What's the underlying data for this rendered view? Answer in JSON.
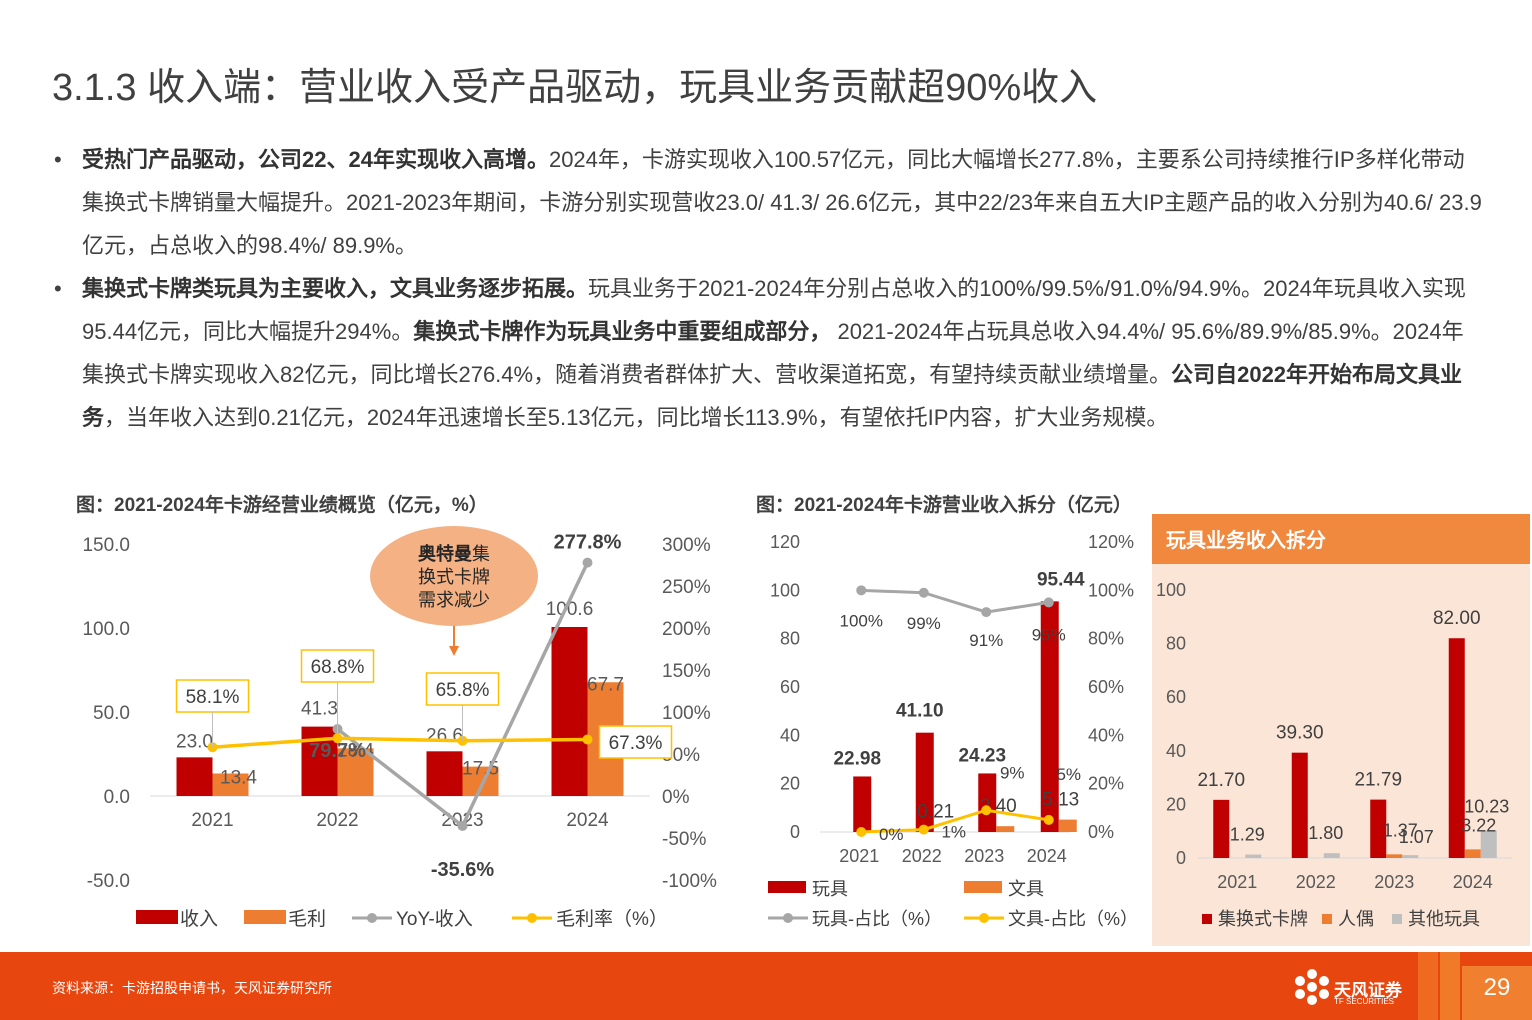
{
  "page": {
    "title_num": "3.1.3 ",
    "title_text": "收入端：营业收入受产品驱动，玩具业务贡献超90%收入",
    "bullets": [
      {
        "bold1": "受热门产品驱动，公司22、24年实现收入高增。",
        "text1": "2024年，卡游实现收入100.57亿元，同比大幅增长277.8%，主要系公司持续推行IP多样化带动集换式卡牌销量大幅提升。2021-2023年期间，卡游分别实现营收23.0/ 41.3/ 26.6亿元，其中22/23年来自五大IP主题产品的收入分别为40.6/ 23.9亿元，占总收入的98.4%/ 89.9%。"
      },
      {
        "bold1": "集换式卡牌类玩具为主要收入，文具业务逐步拓展。",
        "text1": "玩具业务于2021-2024年分别占总收入的100%/99.5%/91.0%/94.9%。2024年玩具收入实现95.44亿元，同比大幅提升294%。",
        "bold2": "集换式卡牌作为玩具业务中重要组成部分，",
        "text2": " 2021-2024年占玩具总收入94.4%/ 95.6%/89.9%/85.9%。2024年集换式卡牌实现收入82亿元，同比增长276.4%，随着消费者群体扩大、营收渠道拓宽，有望持续贡献业绩增量。",
        "bold3": "公司自2022年开始布局文具业务",
        "text3": "，当年收入达到0.21亿元，2024年迅速增长至5.13亿元，同比增长113.9%，有望依托IP内容，扩大业务规模。"
      }
    ],
    "bullet_symbol": "•",
    "footer_source": "资料来源：卡游招股申请书，天风证券研究所",
    "brand_cn": "天风证券",
    "brand_en": "TF SECURITIES",
    "page_number": "29",
    "colors": {
      "dark_red": "#c00000",
      "orange": "#ed7d31",
      "gray": "#a6a6a6",
      "yellow": "#ffc000",
      "footer": "#e8460f",
      "panel": "#fbe5d6"
    }
  },
  "chart_data": [
    {
      "type": "bar",
      "title": "图：2021-2024年卡游经营业绩概览（亿元，%）",
      "categories": [
        "2021",
        "2022",
        "2023",
        "2024"
      ],
      "series": [
        {
          "name": "收入",
          "kind": "bar",
          "axis": "left",
          "values": [
            23.0,
            41.3,
            26.6,
            100.6
          ],
          "labels": [
            "23.0",
            "41.3",
            "26.6",
            "100.6"
          ]
        },
        {
          "name": "毛利",
          "kind": "bar",
          "axis": "left",
          "values": [
            13.4,
            28.4,
            17.5,
            67.7
          ],
          "labels": [
            "13.4",
            "28.4",
            "17.5",
            "67.7"
          ]
        },
        {
          "name": "YoY-收入",
          "kind": "line",
          "axis": "right",
          "values": [
            null,
            79.7,
            -35.6,
            277.8
          ],
          "labels": [
            "",
            "79.7%",
            "-35.6%",
            "277.8%"
          ]
        },
        {
          "name": "毛利率（%）",
          "kind": "line",
          "axis": "right",
          "values": [
            58.1,
            68.8,
            65.8,
            67.3
          ],
          "labels": [
            "58.1%",
            "68.8%",
            "65.8%",
            "67.3%"
          ]
        }
      ],
      "left_axis": {
        "ylim": [
          -50,
          150
        ],
        "ticks": [
          "150.0",
          "100.0",
          "50.0",
          "0.0",
          "-50.0"
        ]
      },
      "right_axis": {
        "ylim": [
          -100,
          300
        ],
        "ticks": [
          "300%",
          "250%",
          "200%",
          "150%",
          "100%",
          "50%",
          "0%",
          "-50%",
          "-100%"
        ]
      },
      "legend": [
        "收入",
        "毛利",
        "YoY-收入",
        "毛利率（%）"
      ],
      "annotation": {
        "bold": "奥特曼",
        "text": "集换式卡牌需求减少"
      },
      "legend_position": "bottom"
    },
    {
      "type": "bar",
      "title": "图：2021-2024年卡游营业收入拆分（亿元）",
      "categories": [
        "2021",
        "2022",
        "2023",
        "2024"
      ],
      "series": [
        {
          "name": "玩具",
          "kind": "bar",
          "axis": "left",
          "values": [
            22.98,
            41.1,
            24.23,
            95.44
          ],
          "labels": [
            "22.98",
            "41.10",
            "24.23",
            "95.44"
          ]
        },
        {
          "name": "文具",
          "kind": "bar",
          "axis": "left",
          "values": [
            0,
            0.21,
            2.4,
            5.13
          ],
          "labels": [
            "",
            "0.21",
            "2.40",
            "5.13"
          ]
        },
        {
          "name": "玩具-占比（%）",
          "kind": "line",
          "axis": "right",
          "values": [
            100,
            99,
            91,
            95
          ],
          "labels": [
            "100%",
            "99%",
            "91%",
            "95%"
          ]
        },
        {
          "name": "文具-占比（%）",
          "kind": "line",
          "axis": "right",
          "values": [
            0,
            1,
            9,
            5
          ],
          "labels": [
            "0%",
            "1%",
            "9%",
            "5%"
          ]
        }
      ],
      "left_axis": {
        "ylim": [
          0,
          120
        ],
        "ticks": [
          "120",
          "100",
          "80",
          "60",
          "40",
          "20",
          "0"
        ]
      },
      "right_axis": {
        "ylim": [
          0,
          120
        ],
        "ticks": [
          "120%",
          "100%",
          "80%",
          "60%",
          "40%",
          "20%",
          "0%"
        ]
      },
      "legend": [
        "玩具",
        "文具",
        "玩具-占比（%）",
        "文具-占比（%）"
      ],
      "legend_position": "bottom"
    },
    {
      "type": "bar",
      "title": "玩具业务收入拆分",
      "categories": [
        "2021",
        "2022",
        "2023",
        "2024"
      ],
      "series": [
        {
          "name": "集换式卡牌",
          "values": [
            21.7,
            39.3,
            21.79,
            82.0
          ],
          "labels": [
            "21.70",
            "39.30",
            "21.79",
            "82.00"
          ]
        },
        {
          "name": "人偶",
          "values": [
            0,
            0,
            1.37,
            3.22
          ],
          "labels": [
            "",
            "",
            "1.37",
            "3.22"
          ]
        },
        {
          "name": "其他玩具",
          "values": [
            1.29,
            1.8,
            1.07,
            10.23
          ],
          "labels": [
            "1.29",
            "1.80",
            "1.07",
            "10.23"
          ]
        }
      ],
      "left_axis": {
        "ylim": [
          0,
          100
        ],
        "ticks": [
          "100",
          "80",
          "60",
          "40",
          "20",
          "0"
        ]
      },
      "legend": [
        "集换式卡牌",
        "人偶",
        "其他玩具"
      ],
      "legend_position": "bottom"
    }
  ]
}
